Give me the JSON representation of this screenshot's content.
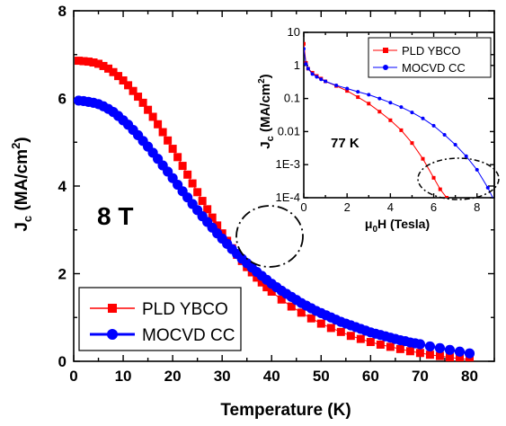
{
  "colors": {
    "pld": "#ff0000",
    "mocvd": "#0000ff"
  },
  "main": {
    "xlabel": "Temperature (K)",
    "ylabel": "J",
    "ylabel_sub": "c",
    "ylabel_unit": " (MA/cm",
    "ylabel_sup": "2",
    "ylabel_end": ")",
    "annotation": "8 T",
    "xlim": [
      0,
      85
    ],
    "ylim": [
      0,
      8
    ],
    "xticks": [
      "0",
      "10",
      "20",
      "30",
      "40",
      "50",
      "60",
      "70",
      "80"
    ],
    "yticks": [
      "0",
      "2",
      "4",
      "6",
      "8"
    ],
    "legend": {
      "pld": "PLD YBCO",
      "mocvd": "MOCVD CC"
    }
  },
  "inset": {
    "xlabel_mu": "μ",
    "xlabel_sub": "0",
    "xlabel_rest": "H (Tesla)",
    "ylabel": "J",
    "ylabel_sub": "c",
    "ylabel_unit": " (MA/cm",
    "ylabel_sup": "2",
    "ylabel_end": ")",
    "annotation": "77 K",
    "xticks": [
      "0",
      "2",
      "4",
      "6",
      "8"
    ],
    "yticks": [
      "10",
      "1",
      "0.1",
      "0.01",
      "1E-3",
      "1E-4"
    ],
    "legend": {
      "pld": "PLD YBCO",
      "mocvd": "MOCVD CC"
    }
  },
  "chart_data": [
    {
      "type": "scatter",
      "xlabel": "Temperature (K)",
      "ylabel": "Jc (MA/cm2)",
      "xlim": [
        0,
        85
      ],
      "ylim": [
        0,
        8
      ],
      "annotation": "8 T",
      "legend_position": "bottom-left",
      "series": [
        {
          "name": "PLD YBCO",
          "marker": "square",
          "x": [
            1,
            2,
            3,
            4,
            5,
            6,
            7,
            8,
            9,
            10,
            11,
            12,
            13,
            14,
            15,
            16,
            17,
            18,
            19,
            20,
            21,
            22,
            23,
            24,
            25,
            26,
            27,
            28,
            29,
            30,
            31,
            32,
            33,
            34,
            35,
            36,
            37,
            38,
            39,
            40,
            42,
            44,
            46,
            48,
            50,
            52,
            54,
            56,
            58,
            60,
            62,
            64,
            66,
            68,
            70,
            72,
            74,
            76,
            78,
            80
          ],
          "y": [
            6.86,
            6.85,
            6.84,
            6.82,
            6.79,
            6.74,
            6.68,
            6.6,
            6.51,
            6.41,
            6.3,
            6.17,
            6.04,
            5.9,
            5.74,
            5.58,
            5.41,
            5.23,
            5.04,
            4.85,
            4.66,
            4.46,
            4.26,
            4.06,
            3.86,
            3.66,
            3.47,
            3.28,
            3.1,
            2.92,
            2.75,
            2.58,
            2.43,
            2.29,
            2.15,
            2.03,
            1.91,
            1.8,
            1.69,
            1.59,
            1.41,
            1.25,
            1.11,
            0.98,
            0.86,
            0.76,
            0.67,
            0.58,
            0.51,
            0.44,
            0.38,
            0.33,
            0.28,
            0.23,
            0.19,
            0.15,
            0.12,
            0.09,
            0.06,
            0.04
          ]
        },
        {
          "name": "MOCVD CC",
          "marker": "circle",
          "x": [
            1,
            2,
            3,
            4,
            5,
            6,
            7,
            8,
            9,
            10,
            11,
            12,
            13,
            14,
            15,
            16,
            17,
            18,
            19,
            20,
            21,
            22,
            23,
            24,
            25,
            26,
            27,
            28,
            29,
            30,
            31,
            32,
            33,
            34,
            35,
            36,
            37,
            38,
            39,
            40,
            41,
            42,
            43,
            44,
            45,
            46,
            47,
            48,
            49,
            50,
            51,
            52,
            53,
            54,
            55,
            56,
            57,
            58,
            59,
            60,
            61,
            62,
            63,
            64,
            65,
            66,
            67,
            68,
            69,
            70,
            72,
            74,
            76,
            78,
            80
          ],
          "y": [
            5.95,
            5.94,
            5.92,
            5.9,
            5.87,
            5.82,
            5.76,
            5.69,
            5.6,
            5.5,
            5.4,
            5.28,
            5.16,
            5.03,
            4.9,
            4.76,
            4.62,
            4.47,
            4.33,
            4.18,
            4.03,
            3.88,
            3.74,
            3.59,
            3.45,
            3.31,
            3.18,
            3.05,
            2.92,
            2.8,
            2.68,
            2.56,
            2.45,
            2.34,
            2.24,
            2.14,
            2.04,
            1.95,
            1.86,
            1.77,
            1.69,
            1.61,
            1.54,
            1.47,
            1.4,
            1.33,
            1.27,
            1.21,
            1.15,
            1.1,
            1.05,
            1.0,
            0.95,
            0.9,
            0.86,
            0.82,
            0.78,
            0.74,
            0.7,
            0.66,
            0.63,
            0.6,
            0.57,
            0.54,
            0.51,
            0.48,
            0.46,
            0.43,
            0.41,
            0.39,
            0.34,
            0.3,
            0.26,
            0.22,
            0.18
          ]
        }
      ]
    },
    {
      "type": "scatter",
      "xlabel": "μ0H (Tesla)",
      "ylabel": "Jc (MA/cm2)",
      "xlim": [
        0,
        8.8
      ],
      "ylim": [
        0.0001,
        10
      ],
      "yscale": "log",
      "annotation": "77 K",
      "legend_position": "top-right",
      "series": [
        {
          "name": "PLD YBCO",
          "marker": "square",
          "x": [
            0,
            0.1,
            0.2,
            0.4,
            0.6,
            0.8,
            1.0,
            1.5,
            2.0,
            2.5,
            3.0,
            3.5,
            4.0,
            4.5,
            5.0,
            5.5,
            6.0,
            6.3,
            6.6,
            6.8
          ],
          "y": [
            4.5,
            1.2,
            0.8,
            0.6,
            0.48,
            0.4,
            0.33,
            0.24,
            0.17,
            0.11,
            0.07,
            0.04,
            0.022,
            0.011,
            0.0045,
            0.0015,
            0.0004,
            0.00018,
            0.0001,
            6e-05
          ]
        },
        {
          "name": "MOCVD CC",
          "marker": "circle",
          "x": [
            0,
            0.1,
            0.2,
            0.4,
            0.6,
            0.8,
            1.0,
            1.5,
            2.0,
            2.5,
            3.0,
            3.5,
            4.0,
            4.5,
            5.0,
            5.5,
            6.0,
            6.5,
            7.0,
            7.5,
            8.0,
            8.5,
            8.8
          ],
          "y": [
            3.2,
            1.1,
            0.8,
            0.55,
            0.45,
            0.38,
            0.33,
            0.25,
            0.2,
            0.16,
            0.13,
            0.1,
            0.075,
            0.055,
            0.038,
            0.025,
            0.015,
            0.008,
            0.004,
            0.0018,
            0.0007,
            0.0002,
            8e-05
          ]
        }
      ]
    }
  ]
}
